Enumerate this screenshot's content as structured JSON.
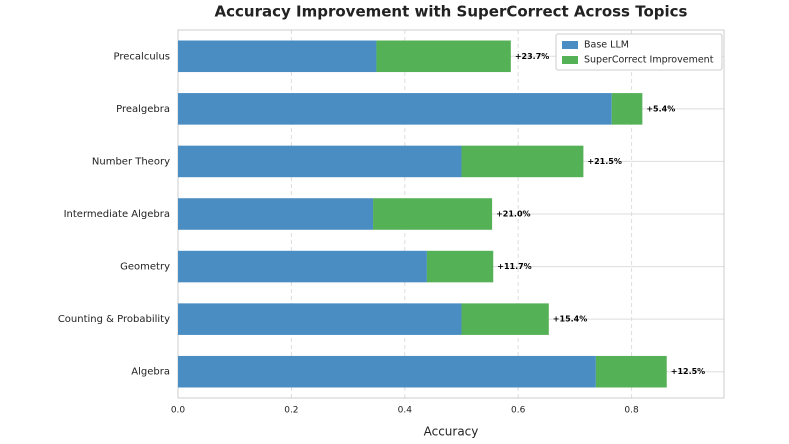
{
  "chart_data": {
    "type": "stacked-barh",
    "title": "Accuracy Improvement with SuperCorrect Across Topics",
    "x_label": "Accuracy",
    "categories": [
      "Algebra",
      "Counting & Probability",
      "Geometry",
      "Intermediate Algebra",
      "Number Theory",
      "Prealgebra",
      "Precalculus"
    ],
    "series": [
      {
        "name": "Base LLM",
        "color": "#4a8dc3",
        "values": [
          0.737,
          0.5,
          0.439,
          0.344,
          0.5,
          0.765,
          0.35
        ]
      },
      {
        "name": "SuperCorrect Improvement",
        "color": "#55b155",
        "values": [
          0.125,
          0.154,
          0.117,
          0.21,
          0.215,
          0.054,
          0.237
        ],
        "value_labels": [
          "+12.5%",
          "+15.4%",
          "+11.7%",
          "+21.0%",
          "+21.5%",
          "+5.4%",
          "+23.7%"
        ]
      }
    ],
    "xlim": [
      0,
      0.963
    ],
    "xticks": [
      {
        "value": 0,
        "label": "0.0"
      },
      0.2,
      0.4,
      0.6,
      0.8
    ],
    "grid": true,
    "legend": "upper right"
  }
}
